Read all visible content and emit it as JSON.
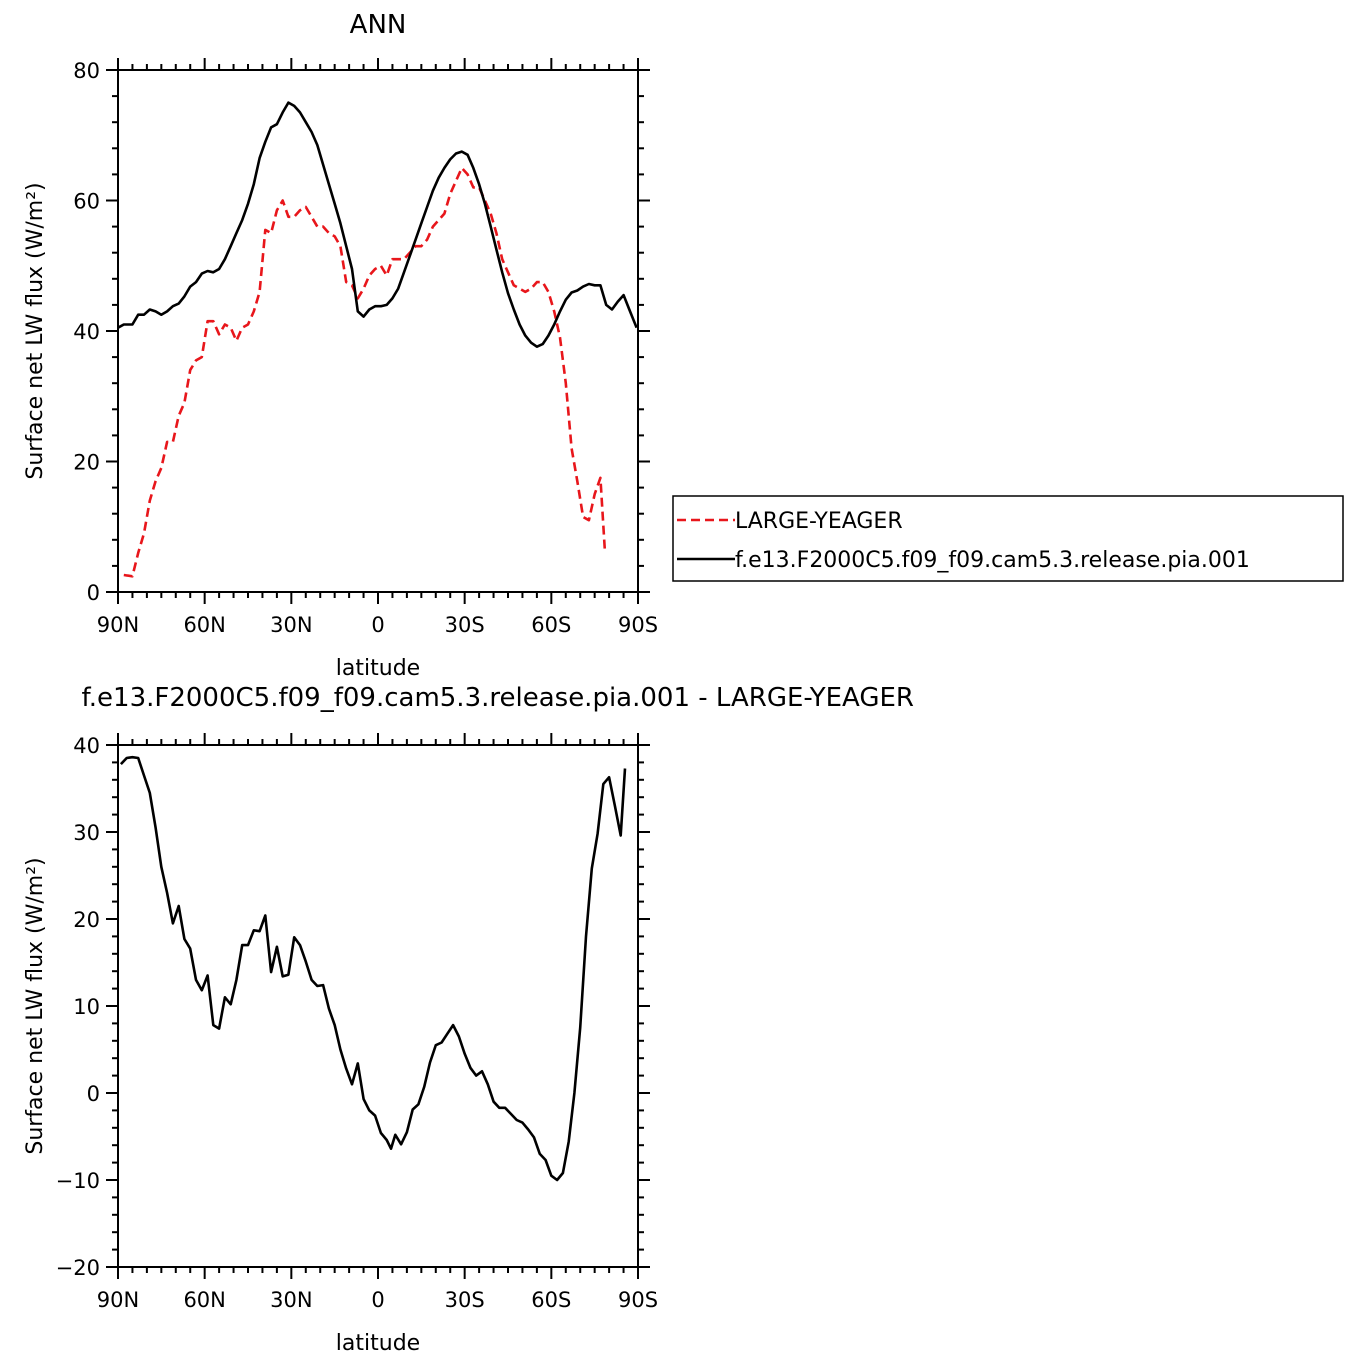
{
  "chart_data": [
    {
      "type": "line",
      "title": "ANN",
      "xlabel": "latitude",
      "ylabel": "Surface net LW flux (W/m²)",
      "xlim": [
        -90,
        90
      ],
      "ylim": [
        0,
        80
      ],
      "x_ticks": [
        {
          "value": -90,
          "label": "90N"
        },
        {
          "value": -60,
          "label": "60N"
        },
        {
          "value": -30,
          "label": "30N"
        },
        {
          "value": 0,
          "label": "0"
        },
        {
          "value": 30,
          "label": "30S"
        },
        {
          "value": 60,
          "label": "60S"
        },
        {
          "value": 90,
          "label": "90S"
        }
      ],
      "y_ticks": [
        0,
        20,
        40,
        60,
        80
      ],
      "legend_position": "right",
      "series": [
        {
          "name": "LARGE-YEAGER",
          "color": "#e8161b",
          "dash": "dashed",
          "points": [
            [
              -88,
              2.6
            ],
            [
              -85,
              2.4
            ],
            [
              -83,
              6
            ],
            [
              -81,
              9
            ],
            [
              -79,
              14
            ],
            [
              -77,
              17
            ],
            [
              -75,
              19
            ],
            [
              -73,
              23
            ],
            [
              -71,
              23
            ],
            [
              -69,
              27
            ],
            [
              -67,
              29
            ],
            [
              -65,
              34
            ],
            [
              -63,
              35.5
            ],
            [
              -61,
              36
            ],
            [
              -59,
              41.5
            ],
            [
              -57,
              41.5
            ],
            [
              -55,
              39.5
            ],
            [
              -53,
              41
            ],
            [
              -51,
              40.5
            ],
            [
              -49,
              38.5
            ],
            [
              -47,
              40.5
            ],
            [
              -45,
              41
            ],
            [
              -43,
              43
            ],
            [
              -41,
              46
            ],
            [
              -39,
              55.5
            ],
            [
              -37,
              55
            ],
            [
              -35,
              58.5
            ],
            [
              -33,
              60
            ],
            [
              -31,
              57.5
            ],
            [
              -29,
              57.5
            ],
            [
              -27,
              58.5
            ],
            [
              -25,
              59
            ],
            [
              -23,
              57.5
            ],
            [
              -21,
              56
            ],
            [
              -19,
              56
            ],
            [
              -17,
              55
            ],
            [
              -15,
              54.5
            ],
            [
              -13,
              53
            ],
            [
              -11,
              47.5
            ],
            [
              -9,
              47
            ],
            [
              -7,
              45
            ],
            [
              -5,
              46.5
            ],
            [
              -3,
              48.5
            ],
            [
              -1,
              49.5
            ],
            [
              1,
              50
            ],
            [
              3,
              48.5
            ],
            [
              5,
              51
            ],
            [
              7,
              51
            ],
            [
              9,
              51
            ],
            [
              11,
              52
            ],
            [
              13,
              53
            ],
            [
              15,
              53
            ],
            [
              17,
              54
            ],
            [
              19,
              56
            ],
            [
              21,
              57
            ],
            [
              23,
              58
            ],
            [
              25,
              61
            ],
            [
              27,
              63
            ],
            [
              29,
              65
            ],
            [
              31,
              64
            ],
            [
              33,
              62
            ],
            [
              35,
              62
            ],
            [
              37,
              60
            ],
            [
              39,
              58
            ],
            [
              41,
              55
            ],
            [
              43,
              51
            ],
            [
              45,
              49
            ],
            [
              47,
              47
            ],
            [
              49,
              46.5
            ],
            [
              51,
              46
            ],
            [
              53,
              46.5
            ],
            [
              55,
              47.5
            ],
            [
              57,
              47.5
            ],
            [
              59,
              46
            ],
            [
              61,
              43
            ],
            [
              63,
              39
            ],
            [
              65,
              32
            ],
            [
              67,
              22
            ],
            [
              69,
              17
            ],
            [
              71,
              11.5
            ],
            [
              73,
              11
            ],
            [
              75,
              15
            ],
            [
              77,
              17.5
            ],
            [
              78.5,
              6.5
            ]
          ]
        },
        {
          "name": "f.e13.F2000C5.f09_f09.cam5.3.release.pia.001",
          "color": "#000000",
          "dash": "solid",
          "points": [
            [
              -90,
              40.5
            ],
            [
              -88,
              41
            ],
            [
              -85,
              41
            ],
            [
              -83,
              42.5
            ],
            [
              -81,
              42.5
            ],
            [
              -79,
              43.3
            ],
            [
              -77,
              43
            ],
            [
              -75,
              42.5
            ],
            [
              -73,
              43
            ],
            [
              -71,
              43.8
            ],
            [
              -69,
              44.2
            ],
            [
              -67,
              45.3
            ],
            [
              -65,
              46.8
            ],
            [
              -63,
              47.5
            ],
            [
              -61,
              48.8
            ],
            [
              -59,
              49.2
            ],
            [
              -57,
              49
            ],
            [
              -55,
              49.5
            ],
            [
              -53,
              51
            ],
            [
              -51,
              53
            ],
            [
              -49,
              55
            ],
            [
              -47,
              57
            ],
            [
              -45,
              59.5
            ],
            [
              -43,
              62.5
            ],
            [
              -41,
              66.5
            ],
            [
              -39,
              69
            ],
            [
              -37,
              71.2
            ],
            [
              -35,
              71.7
            ],
            [
              -33,
              73.5
            ],
            [
              -31,
              75
            ],
            [
              -29,
              74.5
            ],
            [
              -27,
              73.5
            ],
            [
              -25,
              72
            ],
            [
              -23,
              70.5
            ],
            [
              -21,
              68.5
            ],
            [
              -19,
              65.5
            ],
            [
              -17,
              62.5
            ],
            [
              -15,
              59.5
            ],
            [
              -13,
              56.5
            ],
            [
              -11,
              53
            ],
            [
              -9,
              49.5
            ],
            [
              -7,
              43
            ],
            [
              -5,
              42.2
            ],
            [
              -3,
              43.3
            ],
            [
              -1,
              43.8
            ],
            [
              1,
              43.8
            ],
            [
              3,
              44
            ],
            [
              5,
              45
            ],
            [
              7,
              46.5
            ],
            [
              9,
              49
            ],
            [
              11,
              51.5
            ],
            [
              13,
              54
            ],
            [
              15,
              56.5
            ],
            [
              17,
              59
            ],
            [
              19,
              61.5
            ],
            [
              21,
              63.5
            ],
            [
              23,
              65
            ],
            [
              25,
              66.3
            ],
            [
              27,
              67.2
            ],
            [
              29,
              67.5
            ],
            [
              31,
              67
            ],
            [
              33,
              65
            ],
            [
              35,
              62.5
            ],
            [
              37,
              59.5
            ],
            [
              39,
              56
            ],
            [
              41,
              52.5
            ],
            [
              43,
              49
            ],
            [
              45,
              45.8
            ],
            [
              47,
              43.3
            ],
            [
              49,
              41
            ],
            [
              51,
              39.3
            ],
            [
              53,
              38.2
            ],
            [
              55,
              37.6
            ],
            [
              57,
              38
            ],
            [
              59,
              39.3
            ],
            [
              61,
              41
            ],
            [
              63,
              43
            ],
            [
              65,
              44.8
            ],
            [
              67,
              45.9
            ],
            [
              69,
              46.2
            ],
            [
              71,
              46.8
            ],
            [
              73,
              47.2
            ],
            [
              75,
              47
            ],
            [
              77,
              47
            ],
            [
              79,
              44
            ],
            [
              81,
              43.3
            ],
            [
              83,
              44.5
            ],
            [
              85,
              45.5
            ],
            [
              87,
              43.3
            ],
            [
              89.5,
              40.5
            ]
          ]
        }
      ]
    },
    {
      "type": "line",
      "title": "f.e13.F2000C5.f09_f09.cam5.3.release.pia.001 - LARGE-YEAGER",
      "xlabel": "latitude",
      "ylabel": "Surface net LW flux (W/m²)",
      "xlim": [
        -90,
        90
      ],
      "ylim": [
        -20,
        40
      ],
      "x_ticks": [
        {
          "value": -90,
          "label": "90N"
        },
        {
          "value": -60,
          "label": "60N"
        },
        {
          "value": -30,
          "label": "30N"
        },
        {
          "value": 0,
          "label": "0"
        },
        {
          "value": 30,
          "label": "30S"
        },
        {
          "value": 60,
          "label": "60S"
        },
        {
          "value": 90,
          "label": "90S"
        }
      ],
      "y_ticks": [
        -20,
        -10,
        0,
        10,
        20,
        30,
        40
      ],
      "series": [
        {
          "name": "",
          "color": "#000000",
          "dash": "solid",
          "points": [
            [
              -89,
              37.8
            ],
            [
              -87,
              38.5
            ],
            [
              -85,
              38.6
            ],
            [
              -83,
              38.5
            ],
            [
              -81,
              36.5
            ],
            [
              -79,
              34.5
            ],
            [
              -77,
              30.5
            ],
            [
              -75,
              26
            ],
            [
              -73,
              23
            ],
            [
              -71,
              19.5
            ],
            [
              -69,
              21.5
            ],
            [
              -67,
              17.7
            ],
            [
              -65,
              16.6
            ],
            [
              -63,
              13
            ],
            [
              -61,
              11.8
            ],
            [
              -59,
              13.5
            ],
            [
              -57,
              7.8
            ],
            [
              -55,
              7.4
            ],
            [
              -53,
              11
            ],
            [
              -51,
              10.2
            ],
            [
              -49,
              13
            ],
            [
              -47,
              17
            ],
            [
              -45,
              17
            ],
            [
              -43,
              18.7
            ],
            [
              -41,
              18.6
            ],
            [
              -39,
              20.4
            ],
            [
              -37,
              13.9
            ],
            [
              -35,
              16.8
            ],
            [
              -33,
              13.4
            ],
            [
              -31,
              13.6
            ],
            [
              -29,
              17.9
            ],
            [
              -27,
              17
            ],
            [
              -25,
              15.1
            ],
            [
              -23,
              13
            ],
            [
              -21,
              12.3
            ],
            [
              -19,
              12.4
            ],
            [
              -17,
              9.7
            ],
            [
              -15,
              7.8
            ],
            [
              -13,
              5
            ],
            [
              -11,
              2.8
            ],
            [
              -9,
              1
            ],
            [
              -7,
              3.4
            ],
            [
              -5,
              -0.7
            ],
            [
              -3,
              -2
            ],
            [
              -1,
              -2.6
            ],
            [
              1,
              -4.6
            ],
            [
              3,
              -5.4
            ],
            [
              4.5,
              -6.4
            ],
            [
              6,
              -4.8
            ],
            [
              8,
              -5.9
            ],
            [
              10,
              -4.5
            ],
            [
              12,
              -1.9
            ],
            [
              14,
              -1.3
            ],
            [
              16,
              0.7
            ],
            [
              18,
              3.5
            ],
            [
              20,
              5.5
            ],
            [
              22,
              5.8
            ],
            [
              24,
              6.8
            ],
            [
              26,
              7.8
            ],
            [
              28,
              6.5
            ],
            [
              30,
              4.5
            ],
            [
              32,
              2.9
            ],
            [
              34,
              2
            ],
            [
              36,
              2.5
            ],
            [
              38,
              1
            ],
            [
              40,
              -1
            ],
            [
              42,
              -1.7
            ],
            [
              44,
              -1.7
            ],
            [
              46,
              -2.4
            ],
            [
              48,
              -3.1
            ],
            [
              50,
              -3.4
            ],
            [
              52,
              -4.2
            ],
            [
              54,
              -5.1
            ],
            [
              56,
              -7
            ],
            [
              58,
              -7.7
            ],
            [
              60,
              -9.5
            ],
            [
              62,
              -10
            ],
            [
              64,
              -9.2
            ],
            [
              66,
              -5.6
            ],
            [
              68,
              0
            ],
            [
              70,
              7.5
            ],
            [
              72,
              18
            ],
            [
              74,
              25.8
            ],
            [
              76,
              29.8
            ],
            [
              78,
              35.5
            ],
            [
              80,
              36.3
            ],
            [
              82,
              33
            ],
            [
              84,
              29.6
            ],
            [
              85.5,
              37.3
            ]
          ]
        }
      ]
    }
  ]
}
